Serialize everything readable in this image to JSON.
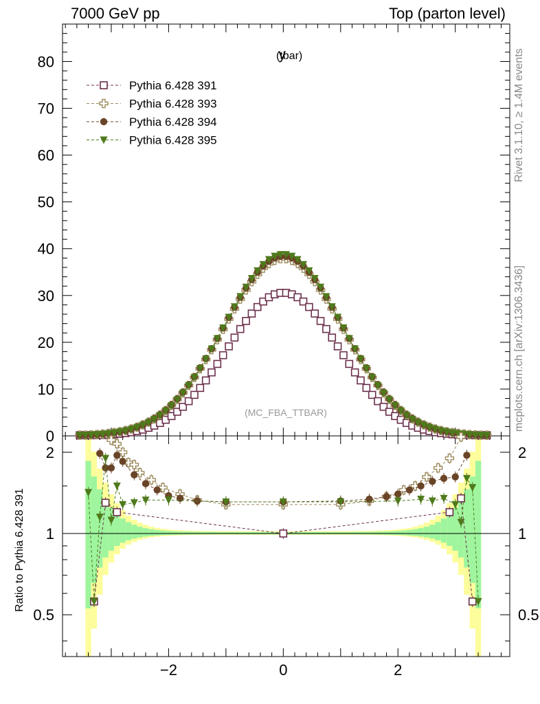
{
  "header": {
    "energy_label": "7000 GeV pp",
    "process_label": "Top (parton level)"
  },
  "side": {
    "rivet_label": "Rivet 3.1.10, ≥ 1.4M events",
    "mcplots_label": "mcplots.cern.ch [arXiv:1306.3436]"
  },
  "chart_data": {
    "type": "scatter",
    "title": "y",
    "title_sub": "(tbar)",
    "analysis_tag": "(MC_FBA_TTBAR)",
    "xlim": [
      -3.85,
      3.95
    ],
    "x_ticks": [
      -2,
      0,
      2
    ],
    "x_tick_labels": [
      "−2",
      "0",
      "2"
    ],
    "main_ylim": [
      0,
      88
    ],
    "main_y_ticks": [
      0,
      10,
      20,
      30,
      40,
      50,
      60,
      70,
      80
    ],
    "ratio_ylabel": "Ratio to Pythia 6.428 391",
    "ratio_ylim": [
      0.35,
      2.3
    ],
    "ratio_y_ticks": [
      0.5,
      1,
      2
    ],
    "ratio_y_tick_labels": [
      "0.5",
      "1",
      "2"
    ],
    "legend_position": "top-left",
    "series": [
      {
        "name": "Pythia 6.428 391",
        "color": "#6b2f4c",
        "marker": "open-square",
        "peak": 30.6,
        "sigma": 0.98,
        "ratio_points": [
          [
            -3.3,
            0.56
          ],
          [
            -3.1,
            1.3
          ],
          [
            -2.9,
            1.2
          ],
          [
            0,
            1.0
          ],
          [
            2.9,
            1.2
          ],
          [
            3.1,
            1.35
          ],
          [
            3.3,
            0.56
          ]
        ]
      },
      {
        "name": "Pythia 6.428 393",
        "color": "#9c8b5e",
        "marker": "open-cross",
        "peak": 37.9,
        "sigma": 1.04,
        "ratio_points": [
          [
            -3.0,
            2.22
          ],
          [
            -2.9,
            2.15
          ],
          [
            -2.8,
            2.0
          ],
          [
            -2.7,
            1.83
          ],
          [
            -2.6,
            1.8
          ],
          [
            -2.5,
            1.68
          ],
          [
            -2.3,
            1.58
          ],
          [
            -2.1,
            1.48
          ],
          [
            -1.8,
            1.4
          ],
          [
            -1.5,
            1.33
          ],
          [
            -1.0,
            1.28
          ],
          [
            0,
            1.28
          ],
          [
            1.0,
            1.28
          ],
          [
            1.5,
            1.32
          ],
          [
            1.8,
            1.37
          ],
          [
            2.1,
            1.45
          ],
          [
            2.3,
            1.5
          ],
          [
            2.5,
            1.62
          ],
          [
            2.7,
            1.75
          ],
          [
            2.9,
            1.9
          ],
          [
            3.1,
            2.28
          ]
        ]
      },
      {
        "name": "Pythia 6.428 394",
        "color": "#6a4427",
        "marker": "filled-circle",
        "peak": 38.4,
        "sigma": 1.04,
        "ratio_points": [
          [
            -3.2,
            1.98
          ],
          [
            -3.1,
            1.75
          ],
          [
            -3.0,
            1.75
          ],
          [
            -2.9,
            1.95
          ],
          [
            -2.8,
            1.85
          ],
          [
            -2.6,
            1.65
          ],
          [
            -2.4,
            1.53
          ],
          [
            -2.2,
            1.45
          ],
          [
            -2.0,
            1.38
          ],
          [
            -1.8,
            1.35
          ],
          [
            -1.5,
            1.32
          ],
          [
            -1.0,
            1.31
          ],
          [
            0,
            1.31
          ],
          [
            1.0,
            1.32
          ],
          [
            1.5,
            1.34
          ],
          [
            1.8,
            1.37
          ],
          [
            2.0,
            1.4
          ],
          [
            2.2,
            1.45
          ],
          [
            2.4,
            1.5
          ],
          [
            2.6,
            1.56
          ],
          [
            2.8,
            1.6
          ],
          [
            3.0,
            1.62
          ],
          [
            3.2,
            1.95
          ]
        ]
      },
      {
        "name": "Pythia 6.428 395",
        "color": "#4f7a1c",
        "marker": "filled-triangle-down",
        "peak": 38.8,
        "sigma": 1.03,
        "ratio_points": [
          [
            -3.4,
            1.42
          ],
          [
            -3.3,
            0.56
          ],
          [
            -3.2,
            1.15
          ],
          [
            -3.1,
            1.9
          ],
          [
            -3.0,
            1.12
          ],
          [
            -2.9,
            1.5
          ],
          [
            -2.8,
            1.28
          ],
          [
            -2.6,
            1.3
          ],
          [
            -2.4,
            1.33
          ],
          [
            -2.0,
            1.33
          ],
          [
            -1.0,
            1.31
          ],
          [
            0,
            1.31
          ],
          [
            1.0,
            1.31
          ],
          [
            2.0,
            1.32
          ],
          [
            2.4,
            1.34
          ],
          [
            2.6,
            1.32
          ],
          [
            2.8,
            1.35
          ],
          [
            3.0,
            1.28
          ],
          [
            3.1,
            1.1
          ],
          [
            3.2,
            1.6
          ],
          [
            3.3,
            1.48
          ],
          [
            3.4,
            0.56
          ]
        ]
      }
    ]
  }
}
